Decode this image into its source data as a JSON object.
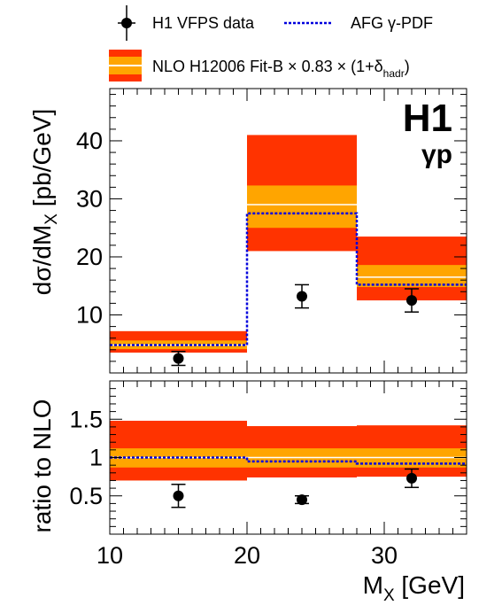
{
  "legend": {
    "data_label": "H1 VFPS data",
    "afg_label": "AFG γ-PDF",
    "nlo_label": "NLO H12006 Fit-B × 0.83 × (1+δ",
    "nlo_subscript": "hadr",
    "nlo_suffix": ")"
  },
  "labels": {
    "experiment": "H1",
    "process": "γp"
  },
  "colors": {
    "band_outer": "#ff3300",
    "band_inner": "#ffa500",
    "central": "#ffffff",
    "afg": "#0000dd",
    "data": "#000000"
  },
  "chart_data": [
    {
      "type": "bar",
      "panel": "upper",
      "ylabel_main": "dσ/dM",
      "ylabel_sub": "X",
      "ylabel_unit": " [pb/GeV]",
      "xlim": [
        10,
        36
      ],
      "ylim": [
        0,
        49
      ],
      "yticks": [
        10,
        20,
        30,
        40
      ],
      "bin_edges": [
        10,
        20,
        28,
        36
      ],
      "series": [
        {
          "name": "H1 VFPS data",
          "type": "points",
          "x": [
            15,
            24,
            32
          ],
          "y": [
            2.5,
            13.2,
            12.5
          ],
          "yerr_low": [
            1.2,
            2.0,
            2.0
          ],
          "yerr_high": [
            1.2,
            2.0,
            2.0
          ]
        },
        {
          "name": "NLO H12006 Fit-B × 0.83 × (1+δhadr)",
          "type": "band",
          "central": [
            4.8,
            29.0,
            16.5
          ],
          "outer_low": [
            3.5,
            21.0,
            12.5
          ],
          "outer_high": [
            7.2,
            41.0,
            23.5
          ],
          "inner_low": [
            4.1,
            25.0,
            14.8
          ],
          "inner_high": [
            5.6,
            32.3,
            18.6
          ]
        },
        {
          "name": "AFG γ-PDF",
          "type": "step",
          "values": [
            4.8,
            27.5,
            15.2
          ]
        }
      ]
    },
    {
      "type": "bar",
      "panel": "lower",
      "ylabel": "ratio to NLO",
      "xlabel_main": "M",
      "xlabel_sub": "X",
      "xlabel_unit": " [GeV]",
      "xlim": [
        10,
        36
      ],
      "ylim": [
        0,
        2
      ],
      "yticks": [
        0.5,
        1,
        1.5
      ],
      "ytick_labels": [
        "0.5",
        "1",
        "1.5"
      ],
      "xticks": [
        10,
        20,
        30
      ],
      "bin_edges": [
        10,
        20,
        28,
        36
      ],
      "series": [
        {
          "name": "H1 VFPS data",
          "type": "points",
          "x": [
            15,
            24,
            32
          ],
          "y": [
            0.5,
            0.45,
            0.73
          ],
          "yerr_low": [
            0.15,
            0.05,
            0.12
          ],
          "yerr_high": [
            0.15,
            0.05,
            0.12
          ]
        },
        {
          "name": "NLO band",
          "type": "band",
          "central": [
            1.0,
            1.0,
            1.0
          ],
          "outer_low": [
            0.7,
            0.74,
            0.75
          ],
          "outer_high": [
            1.48,
            1.41,
            1.42
          ],
          "inner_low": [
            0.87,
            0.87,
            0.87
          ],
          "inner_high": [
            1.12,
            1.12,
            1.12
          ]
        },
        {
          "name": "AFG γ-PDF",
          "type": "step",
          "values": [
            1.0,
            0.95,
            0.92
          ]
        }
      ]
    }
  ]
}
